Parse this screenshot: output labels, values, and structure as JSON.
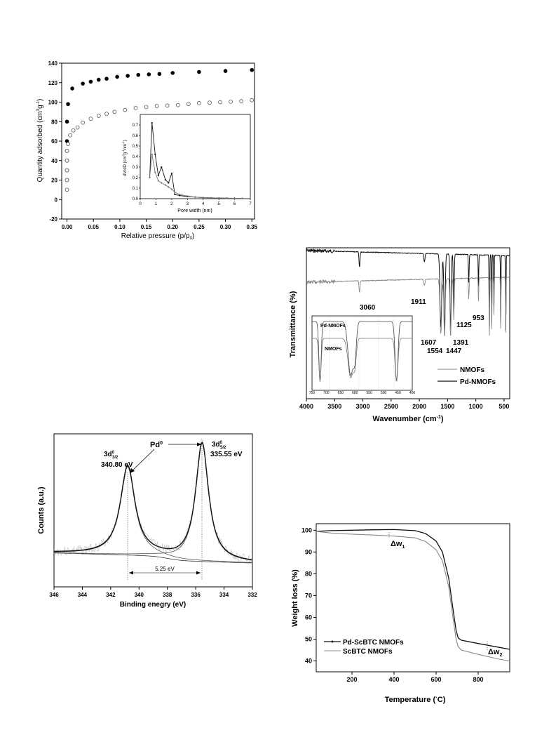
{
  "chart_data": [
    {
      "id": "isotherm",
      "type": "scatter",
      "xlabel": "Relative pressure (p/p",
      "xlabel_sub": "0",
      "xlabel_tail": ")",
      "ylabel": "Quantity adsorbed (cm",
      "ylabel_unit_a": "3",
      "ylabel_mid": "g",
      "ylabel_unit_b": "-1",
      "ylabel_tail": ")",
      "xlim": [
        -0.01,
        0.355
      ],
      "ylim": [
        -20,
        140
      ],
      "xticks": [
        "0.00",
        "0.05",
        "0.10",
        "0.15",
        "0.20",
        "0.25",
        "0.30",
        "0.35"
      ],
      "xtick_vals": [
        0,
        0.05,
        0.1,
        0.15,
        0.2,
        0.25,
        0.3,
        0.35
      ],
      "yticks": [
        "-20",
        "0",
        "20",
        "40",
        "60",
        "80",
        "100",
        "120",
        "140"
      ],
      "ytick_vals": [
        -20,
        0,
        20,
        40,
        60,
        80,
        100,
        120,
        140
      ],
      "series": [
        {
          "marker": "filled",
          "x": [
            0.0,
            0.0,
            0.0,
            0.0,
            0.0,
            0.0,
            0.002,
            0.01,
            0.03,
            0.045,
            0.06,
            0.075,
            0.095,
            0.115,
            0.135,
            0.155,
            0.175,
            0.2,
            0.25,
            0.3,
            0.35
          ],
          "y": [
            20,
            30,
            40,
            50,
            60,
            80,
            98,
            114,
            119,
            121,
            123,
            124,
            126,
            127,
            128,
            128.5,
            129,
            130,
            131,
            132,
            133
          ]
        },
        {
          "marker": "open",
          "x": [
            0.0,
            0.0,
            0.0,
            0.0,
            0.0,
            0.002,
            0.006,
            0.012,
            0.02,
            0.03,
            0.045,
            0.06,
            0.075,
            0.09,
            0.11,
            0.13,
            0.15,
            0.17,
            0.19,
            0.21,
            0.23,
            0.25,
            0.27,
            0.29,
            0.31,
            0.33,
            0.35
          ],
          "y": [
            10,
            20,
            30,
            40,
            50,
            57,
            66,
            71,
            74,
            79,
            83,
            86,
            88,
            90,
            92,
            94,
            95,
            96,
            96.5,
            97,
            98,
            99,
            99.5,
            100,
            100.5,
            101,
            102
          ]
        }
      ],
      "inset": {
        "xlabel": "Pore width (nm)",
        "ylabel": "dV/dD (cm",
        "ylabel_rest": "3",
        "ylabel_g": "g",
        "ylabel_g_exp": "-1",
        "ylabel_nm": "nm",
        "ylabel_nm_exp": "-1",
        "ylabel_end": ")",
        "xlim": [
          0,
          7
        ],
        "ylim": [
          0,
          0.8
        ],
        "xticks": [
          "0",
          "1",
          "2",
          "3",
          "4",
          "5",
          "6",
          "7"
        ],
        "yticks": [
          "0.0",
          "0.1",
          "0.2",
          "0.3",
          "0.4",
          "0.5",
          "0.6",
          "0.7"
        ],
        "series": [
          {
            "x": [
              0.6,
              0.75,
              0.95,
              1.15,
              1.35,
              1.6,
              1.8,
              2.0,
              2.2,
              2.5,
              3,
              3.5,
              4,
              4.5,
              5,
              5.5,
              6,
              6.5
            ],
            "y": [
              0.2,
              0.72,
              0.42,
              0.22,
              0.3,
              0.18,
              0.15,
              0.24,
              0.04,
              0.03,
              0.02,
              0.015,
              0.01,
              0.008,
              0.006,
              0.005,
              0.004,
              0.003
            ]
          },
          {
            "x": [
              0.6,
              0.75,
              0.95,
              1.15,
              1.35,
              1.6,
              1.8,
              2.0,
              2.2,
              2.5,
              3,
              3.5,
              4,
              4.5,
              5,
              5.5,
              6,
              6.5
            ],
            "y": [
              0.2,
              0.42,
              0.25,
              0.17,
              0.15,
              0.13,
              0.11,
              0.09,
              0.06,
              0.04,
              0.025,
              0.015,
              0.01,
              0.008,
              0.006,
              0.005,
              0.004,
              0.003
            ]
          }
        ]
      }
    },
    {
      "id": "ftir",
      "type": "line",
      "xlabel": "Wavenumber (cm",
      "xlabel_exp": "-1",
      "xlabel_tail": ")",
      "ylabel": "Transmittance (%)",
      "xlim": [
        4000,
        400
      ],
      "xticks": [
        "4000",
        "3500",
        "3000",
        "2500",
        "2000",
        "1500",
        "1000",
        "500"
      ],
      "xtick_vals": [
        4000,
        3500,
        3000,
        2500,
        2000,
        1500,
        1000,
        500
      ],
      "legend": [
        "NMOFs",
        "Pd-NMOFs"
      ],
      "peak_labels": [
        "3060",
        "1911",
        "1607",
        "1554",
        "1447",
        "1391",
        "1125",
        "953"
      ],
      "inset": {
        "label_top": "Pd-NMOFs",
        "label_bottom": "NMOFs",
        "xticks": [
          "750",
          "700",
          "650",
          "600",
          "550",
          "500",
          "450",
          "400"
        ]
      }
    },
    {
      "id": "xps",
      "type": "line",
      "xlabel": "Binding enegry (eV)",
      "ylabel": "Counts (a.u.)",
      "xlim": [
        346,
        332
      ],
      "xticks": [
        "346",
        "344",
        "342",
        "340",
        "338",
        "336",
        "334",
        "332"
      ],
      "xtick_vals": [
        346,
        344,
        342,
        340,
        338,
        336,
        334,
        332
      ],
      "annotations": {
        "pd0": "Pd",
        "pd0_sup": "0",
        "left_peak": "3d",
        "left_sup": "0",
        "left_sub": "3/2",
        "left_value": "340.80 eV",
        "right_peak": "3d",
        "right_sup": "0",
        "right_sub": "5/2",
        "right_value": "335.55 eV",
        "split": "5.25 eV"
      },
      "peaks": [
        340.8,
        335.55
      ]
    },
    {
      "id": "tga",
      "type": "line",
      "xlabel": "Temperature (",
      "xlabel_deg": "·",
      "xlabel_tail": "C)",
      "ylabel": "Weight loss (%)",
      "xlim": [
        30,
        950
      ],
      "ylim": [
        35,
        103
      ],
      "xticks": [
        "200",
        "400",
        "600",
        "800"
      ],
      "xtick_vals": [
        200,
        400,
        600,
        800
      ],
      "yticks": [
        "40",
        "50",
        "60",
        "70",
        "80",
        "90",
        "100"
      ],
      "ytick_vals": [
        40,
        50,
        60,
        70,
        80,
        90,
        100
      ],
      "legend": [
        "Pd-ScBTC NMOFs",
        "ScBTC NMOFs"
      ],
      "dw1": "Δw",
      "dw1_sub": "1",
      "dw2": "Δw",
      "dw2_sub": "2",
      "series": [
        {
          "name": "Pd-ScBTC NMOFs",
          "x": [
            30,
            100,
            200,
            300,
            400,
            500,
            550,
            600,
            630,
            660,
            680,
            695,
            705,
            720,
            800,
            900,
            950
          ],
          "y": [
            99.5,
            99.8,
            100,
            100.2,
            100.3,
            99.8,
            98.5,
            95,
            90,
            78,
            64,
            54,
            50.5,
            49.5,
            48,
            46.2,
            45.3
          ]
        },
        {
          "name": "ScBTC NMOFs",
          "x": [
            30,
            100,
            200,
            300,
            400,
            500,
            550,
            600,
            630,
            660,
            680,
            695,
            705,
            720,
            800,
            900,
            950
          ],
          "y": [
            99.5,
            98.7,
            98.2,
            97.8,
            97.3,
            96.5,
            94.8,
            91,
            86,
            74,
            60,
            50,
            46.5,
            45,
            43,
            40.8,
            40
          ]
        }
      ]
    }
  ]
}
